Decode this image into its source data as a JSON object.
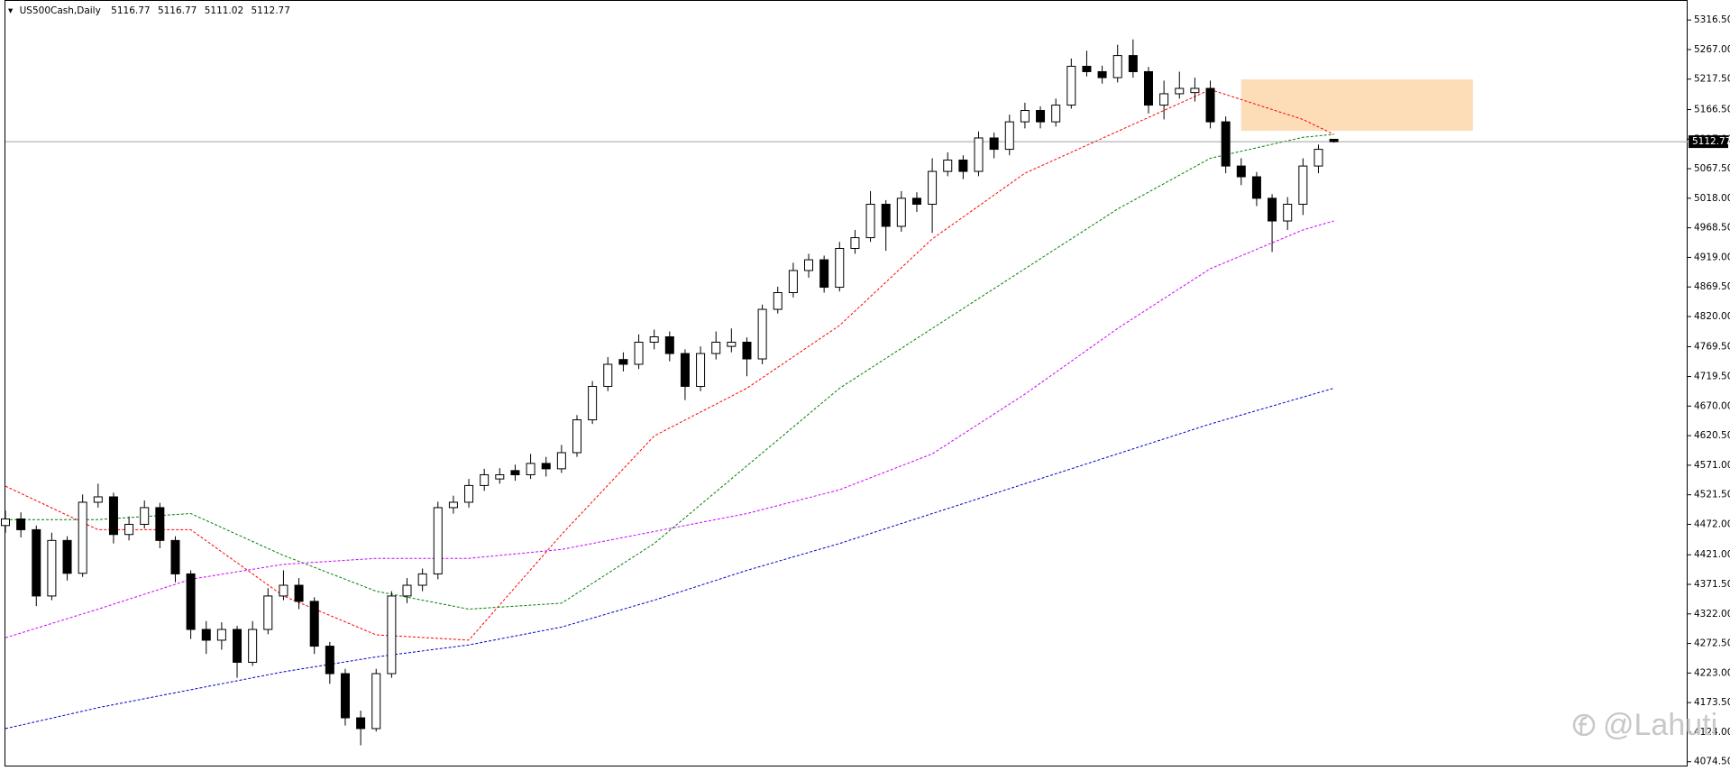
{
  "chart_data": {
    "type": "candlestick",
    "title": "US500Cash,Daily",
    "open": [
      4470,
      4481,
      4463,
      4352,
      4445,
      4390,
      4509,
      4518,
      4455,
      4472,
      4500,
      4445,
      4389,
      4296,
      4278,
      4296,
      4241,
      4296,
      4352,
      4370,
      4343,
      4268,
      4222,
      4148,
      4130,
      4222,
      4352,
      4370,
      4389,
      4500,
      4509,
      4537,
      4548,
      4562,
      4555,
      4574,
      4565,
      4592,
      4647,
      4703,
      4748,
      4740,
      4777,
      4786,
      4758,
      4703,
      4758,
      4770,
      4777,
      4749,
      4832,
      4860,
      4897,
      4915,
      4869,
      4934,
      4952,
      5008,
      4971,
      5018,
      5008,
      5063,
      5082,
      5063,
      5119,
      5100,
      5146,
      5165,
      5146,
      5174,
      5239,
      5230,
      5220,
      5257,
      5230,
      5174,
      5193,
      5195,
      5202,
      5146,
      5072,
      5054,
      5018,
      4980,
      5008,
      5072,
      5116.77
    ],
    "high": [
      4495,
      4492,
      4470,
      4458,
      4452,
      4522,
      4540,
      4525,
      4485,
      4512,
      4508,
      4452,
      4395,
      4310,
      4308,
      4302,
      4310,
      4365,
      4395,
      4382,
      4350,
      4275,
      4230,
      4160,
      4230,
      4360,
      4382,
      4398,
      4510,
      4520,
      4548,
      4565,
      4566,
      4572,
      4590,
      4585,
      4605,
      4655,
      4712,
      4752,
      4760,
      4790,
      4798,
      4795,
      4765,
      4770,
      4795,
      4800,
      4785,
      4840,
      4870,
      4910,
      4925,
      4922,
      4945,
      4965,
      5030,
      5015,
      5030,
      5028,
      5085,
      5095,
      5090,
      5130,
      5128,
      5158,
      5178,
      5172,
      5185,
      5252,
      5265,
      5240,
      5275,
      5284,
      5238,
      5215,
      5230,
      5220,
      5215,
      5155,
      5085,
      5062,
      5025,
      5020,
      5085,
      5108,
      5116.77
    ],
    "low": [
      4458,
      4450,
      4335,
      4345,
      4378,
      4384,
      4500,
      4440,
      4445,
      4465,
      4432,
      4375,
      4280,
      4255,
      4262,
      4215,
      4235,
      4288,
      4345,
      4330,
      4255,
      4205,
      4135,
      4102,
      4125,
      4215,
      4340,
      4360,
      4380,
      4490,
      4500,
      4528,
      4540,
      4545,
      4548,
      4552,
      4558,
      4585,
      4640,
      4695,
      4728,
      4732,
      4765,
      4745,
      4680,
      4695,
      4748,
      4760,
      4720,
      4740,
      4825,
      4852,
      4885,
      4860,
      4862,
      4925,
      4945,
      4930,
      4962,
      4995,
      4960,
      5055,
      5050,
      5055,
      5085,
      5090,
      5135,
      5135,
      5138,
      5168,
      5222,
      5210,
      5212,
      5220,
      5160,
      5150,
      5185,
      5180,
      5135,
      5060,
      5040,
      5005,
      4928,
      4965,
      4990,
      5060,
      5111.02
    ],
    "close": [
      4481,
      4463,
      4352,
      4445,
      4390,
      4509,
      4518,
      4455,
      4472,
      4500,
      4445,
      4389,
      4296,
      4278,
      4296,
      4241,
      4296,
      4352,
      4370,
      4343,
      4268,
      4222,
      4148,
      4130,
      4222,
      4352,
      4370,
      4389,
      4500,
      4509,
      4537,
      4555,
      4555,
      4555,
      4574,
      4565,
      4592,
      4647,
      4703,
      4740,
      4740,
      4777,
      4786,
      4758,
      4703,
      4758,
      4777,
      4777,
      4749,
      4832,
      4860,
      4897,
      4915,
      4869,
      4934,
      4952,
      5008,
      4971,
      5018,
      5008,
      5063,
      5082,
      5063,
      5119,
      5100,
      5146,
      5165,
      5146,
      5174,
      5239,
      5230,
      5220,
      5257,
      5230,
      5174,
      5193,
      5202,
      5202,
      5146,
      5072,
      5054,
      5018,
      4980,
      5008,
      5072,
      5100,
      5112.77
    ],
    "up_color": "#ffffff",
    "down_color": "#000000",
    "series": [
      {
        "color": "#ff0000",
        "x": [
          0,
          6,
          12,
          18,
          24,
          30,
          36,
          42,
          48,
          54,
          60,
          66,
          72,
          78,
          84,
          86
        ],
        "values": [
          4536,
          4463,
          4463,
          4352,
          4287,
          4278,
          4455,
          4620,
          4700,
          4805,
          4950,
          5060,
          5130,
          5200,
          5150,
          5125
        ]
      },
      {
        "color": "#008000",
        "x": [
          0,
          6,
          12,
          18,
          24,
          30,
          36,
          42,
          48,
          54,
          60,
          66,
          72,
          78,
          84,
          86
        ],
        "values": [
          4480,
          4480,
          4490,
          4420,
          4360,
          4330,
          4340,
          4440,
          4570,
          4700,
          4800,
          4900,
          5000,
          5085,
          5120,
          5125
        ]
      },
      {
        "color": "#cc00ff",
        "x": [
          0,
          6,
          12,
          18,
          24,
          30,
          36,
          42,
          48,
          54,
          60,
          66,
          72,
          78,
          84,
          86
        ],
        "values": [
          4282,
          4330,
          4380,
          4405,
          4415,
          4415,
          4430,
          4460,
          4490,
          4530,
          4590,
          4690,
          4800,
          4900,
          4965,
          4980
        ]
      },
      {
        "color": "#0000cc",
        "x": [
          0,
          6,
          12,
          18,
          24,
          30,
          36,
          42,
          48,
          54,
          60,
          66,
          72,
          78,
          84,
          86
        ],
        "values": [
          4130,
          4165,
          4195,
          4225,
          4250,
          4270,
          4300,
          4345,
          4395,
          4440,
          4490,
          4540,
          4590,
          4640,
          4685,
          4700
        ]
      }
    ],
    "zone": {
      "x": [
        80,
        95
      ],
      "y": [
        5131,
        5217
      ],
      "color": "#fddcb8"
    },
    "last_price_line": true,
    "xlim": [
      -0.35,
      108.9
    ],
    "ylim": [
      4065,
      5350
    ],
    "yticks": [
      {
        "value": 5316.5,
        "label": "5316.50"
      },
      {
        "value": 5267,
        "label": "5267.00"
      },
      {
        "value": 5217.5,
        "label": "5217.50"
      },
      {
        "value": 5166.5,
        "label": "5166.50"
      },
      {
        "value": 5117,
        "label": "5117.00"
      },
      {
        "value": 5067.5,
        "label": "5067.50"
      },
      {
        "value": 5018,
        "label": "5018.00"
      },
      {
        "value": 4968.5,
        "label": "4968.50"
      },
      {
        "value": 4919,
        "label": "4919.00"
      },
      {
        "value": 4869.5,
        "label": "4869.50"
      },
      {
        "value": 4820,
        "label": "4820.00"
      },
      {
        "value": 4769.5,
        "label": "4769.50"
      },
      {
        "value": 4719.5,
        "label": "4719.50"
      },
      {
        "value": 4670,
        "label": "4670.00"
      },
      {
        "value": 4620.5,
        "label": "4620.50"
      },
      {
        "value": 4571,
        "label": "4571.00"
      },
      {
        "value": 4521.5,
        "label": "4521.50"
      },
      {
        "value": 4472,
        "label": "4472.00"
      },
      {
        "value": 4421,
        "label": "4421.00"
      },
      {
        "value": 4371.5,
        "label": "4371.50"
      },
      {
        "value": 4322,
        "label": "4322.00"
      },
      {
        "value": 4272.5,
        "label": "4272.50"
      },
      {
        "value": 4223,
        "label": "4223.00"
      },
      {
        "value": 4173.5,
        "label": "4173.50"
      },
      {
        "value": 4124,
        "label": "4124.00"
      },
      {
        "value": 4074.5,
        "label": "4074.50"
      }
    ],
    "watermark": "@Lahuti"
  }
}
